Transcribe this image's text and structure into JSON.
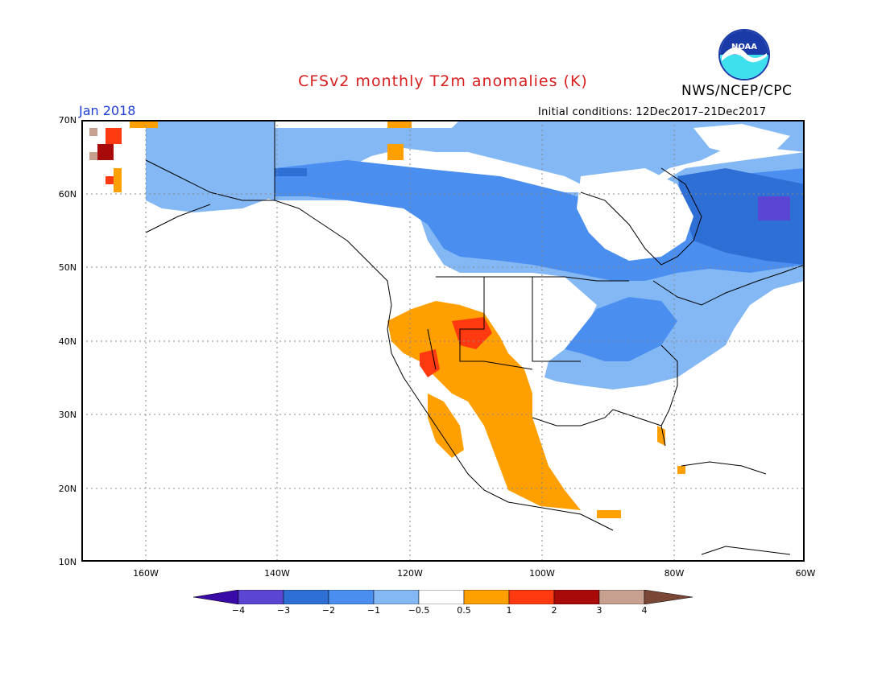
{
  "header": {
    "title": "CFSv2 monthly T2m anomalies (K)",
    "agency": "NWS/NCEP/CPC",
    "logo_text": "NOAA",
    "valid_month": "Jan 2018",
    "initial_conditions": "Initial conditions: 12Dec2017–21Dec2017"
  },
  "map": {
    "lat_labels": [
      "70N",
      "60N",
      "50N",
      "40N",
      "30N",
      "20N",
      "10N"
    ],
    "lon_labels": [
      "160W",
      "140W",
      "120W",
      "100W",
      "80W",
      "60W"
    ],
    "gridlines": "dotted"
  },
  "colorbar": {
    "tick_labels": [
      "−4",
      "−3",
      "−2",
      "−1",
      "−0.5",
      "0.5",
      "1",
      "2",
      "3",
      "4"
    ],
    "colors": [
      "#3a0aa8",
      "#5a46d2",
      "#2e6fd6",
      "#4a8ef0",
      "#84b8f4",
      "#ffffff",
      "#ff9f00",
      "#ff3a10",
      "#a80a0a",
      "#c8a090",
      "#7a4636"
    ]
  },
  "colors": {
    "title": "#d81e1e",
    "month": "#1e3cd8",
    "light_blue": "#84b8f4",
    "mid_blue": "#4a8ef0",
    "dark_blue": "#2e6fd6",
    "orange": "#ff9f00",
    "red": "#ff3a10"
  }
}
